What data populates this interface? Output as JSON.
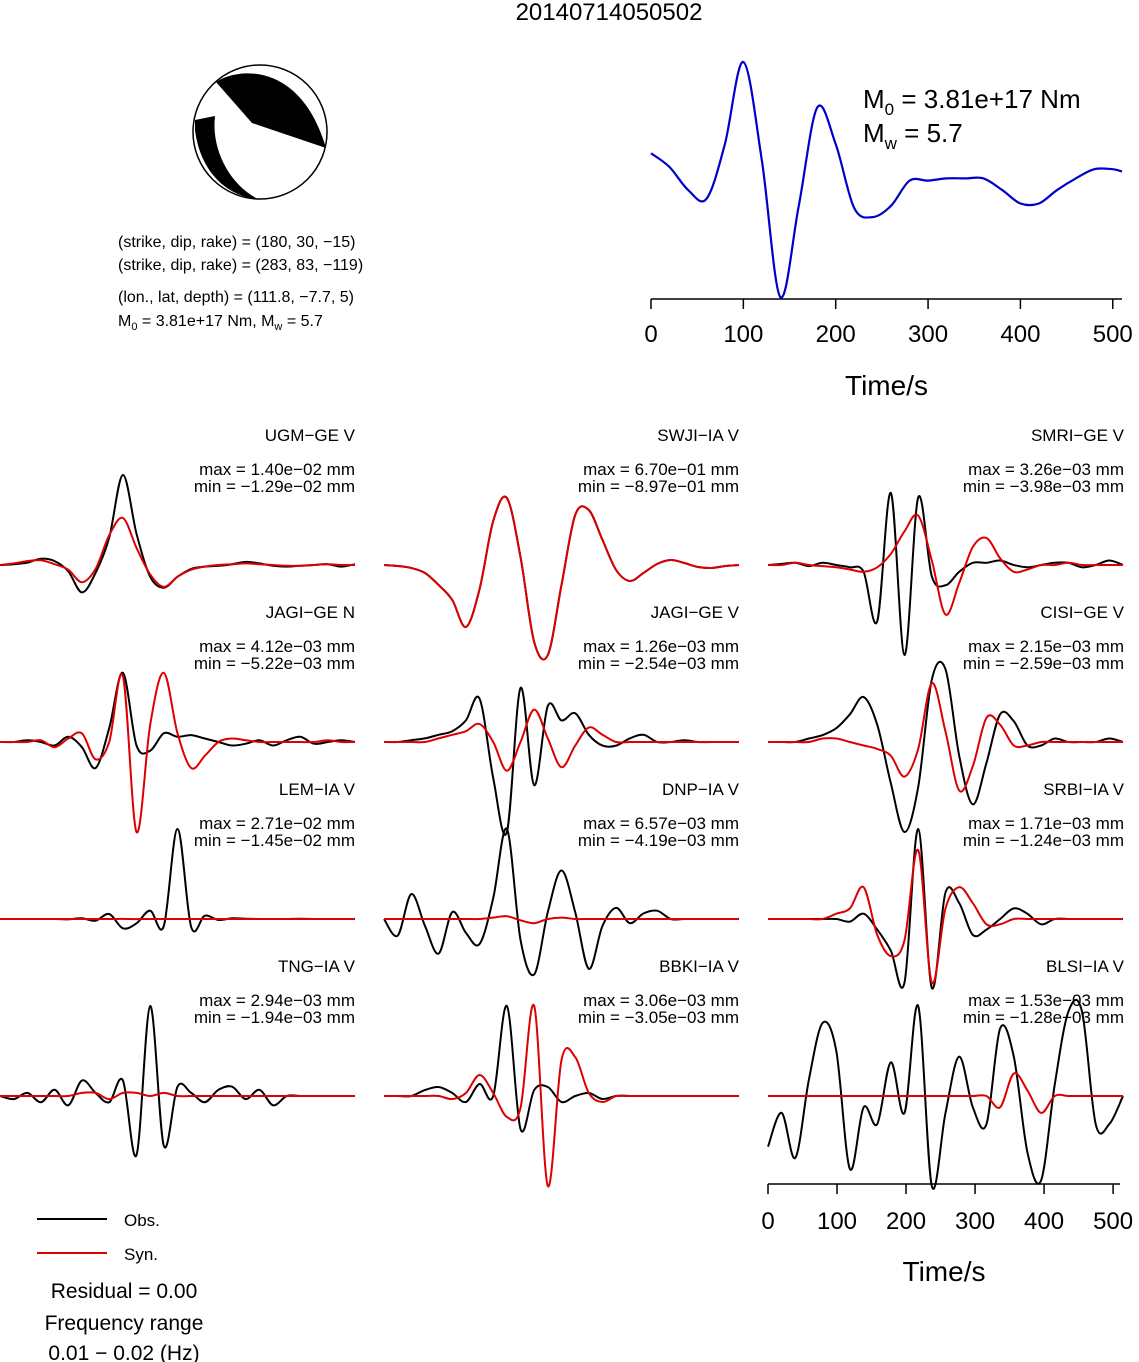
{
  "title": "20140714050502",
  "mechanism": {
    "lines": [
      "(strike, dip, rake) = (180, 30, −15)",
      "(strike, dip, rake) = (283, 83, −119)",
      "(lon., lat, depth) = (111.8, −7.7, 5)"
    ],
    "moment": {
      "m0_label": "M",
      "m0_sub": "0",
      "m0_value": " = 3.81e+17 Nm, M",
      "mw_sub": "w",
      "mw_value": " = 5.7"
    }
  },
  "stf": {
    "m0": {
      "label": "M",
      "sub": "0",
      "value": " = 3.81e+17 Nm"
    },
    "mw": {
      "label": "M",
      "sub": "w",
      "value": " = 5.7"
    }
  },
  "legend": {
    "obs": "Obs.",
    "syn": "Syn.",
    "residual": "Residual = 0.00",
    "freq_title": "Frequency range",
    "freq_range": "0.01 − 0.02 (Hz)"
  },
  "chart_data": {
    "type": "line",
    "colors": {
      "obs": "#000000",
      "syn": "#dd0000",
      "stf": "#0000cc"
    },
    "time_axis": {
      "label": "Time/s",
      "ticks": [
        0,
        100,
        200,
        300,
        400,
        500
      ],
      "xlim": [
        0,
        510
      ]
    },
    "source_time_function": {
      "t": [
        0,
        20,
        40,
        60,
        80,
        100,
        120,
        140,
        160,
        180,
        200,
        220,
        240,
        260,
        280,
        300,
        320,
        340,
        360,
        380,
        400,
        420,
        440,
        460,
        480,
        500,
        510
      ],
      "v": [
        0.58,
        0.52,
        0.42,
        0.38,
        0.62,
        0.98,
        0.55,
        -0.05,
        0.35,
        0.78,
        0.62,
        0.34,
        0.3,
        0.35,
        0.46,
        0.46,
        0.47,
        0.47,
        0.47,
        0.42,
        0.36,
        0.36,
        0.42,
        0.47,
        0.51,
        0.51,
        0.5
      ]
    },
    "stations": [
      {
        "name": "UGM−GE V",
        "max": "max = 1.40e−02 mm",
        "min": "min = −1.29e−02 mm",
        "obs": [
          0,
          0.1,
          0.3,
          0.8,
          0.5,
          -0.8,
          -3.5,
          -1,
          3.5,
          11.5,
          4,
          -1.5,
          -2.9,
          -1.5,
          -0.5,
          -0.2,
          -0.1,
          0.1,
          0.4,
          0.2,
          -0.1,
          -0.2,
          -0.1,
          0,
          0.1,
          -0.2,
          0.1
        ],
        "syn": [
          0,
          0.2,
          0.5,
          0.6,
          0.1,
          -0.6,
          -2.2,
          -0.5,
          3.8,
          6.0,
          2.2,
          -1.2,
          -2.8,
          -1.5,
          -0.6,
          -0.2,
          0,
          0.1,
          0.2,
          0.1,
          0,
          -0.1,
          -0.1,
          0,
          0.1,
          0,
          0
        ]
      },
      {
        "name": "SWJI−IA V",
        "max": "max = 6.70e−01 mm",
        "min": "min = −8.97e−01 mm",
        "obs": [
          0,
          -0.01,
          -0.03,
          -0.08,
          -0.2,
          -0.35,
          -0.62,
          -0.24,
          0.44,
          0.67,
          0.08,
          -0.77,
          -0.9,
          -0.2,
          0.5,
          0.55,
          0.25,
          -0.05,
          -0.16,
          -0.08,
          0.01,
          0.05,
          0.02,
          -0.02,
          -0.03,
          -0.01,
          0
        ],
        "syn": [
          0,
          -0.01,
          -0.03,
          -0.08,
          -0.2,
          -0.35,
          -0.62,
          -0.24,
          0.44,
          0.67,
          0.08,
          -0.77,
          -0.9,
          -0.2,
          0.5,
          0.55,
          0.25,
          -0.05,
          -0.16,
          -0.08,
          0.01,
          0.05,
          0.02,
          -0.02,
          -0.03,
          -0.01,
          0
        ]
      },
      {
        "name": "SMRI−GE V",
        "max": "max = 3.26e−03 mm",
        "min": "min = −3.98e−03 mm",
        "obs": [
          0,
          0.05,
          0.1,
          -0.05,
          0.1,
          0,
          -0.1,
          -0.3,
          -2.5,
          3.2,
          -4,
          3,
          -0.5,
          -0.9,
          -0.3,
          0.1,
          0.1,
          0.2,
          0,
          -0.1,
          0,
          0.1,
          0.1,
          -0.1,
          0,
          0.2,
          0
        ],
        "syn": [
          0,
          0,
          0.1,
          0,
          -0.05,
          -0.1,
          -0.2,
          -0.3,
          -0.1,
          0.5,
          1.5,
          2.2,
          0.2,
          -2.2,
          -0.8,
          0.8,
          1.2,
          0.3,
          -0.3,
          -0.2,
          0,
          0,
          0.1,
          0,
          0,
          0,
          0
        ]
      },
      {
        "name": "JAGI−GE N",
        "max": "max = 4.12e−03 mm",
        "min": "min = −5.22e−03 mm",
        "obs": [
          0,
          0,
          0.1,
          0,
          -0.2,
          0.3,
          -0.3,
          -1.5,
          0.8,
          4,
          -0.2,
          -0.5,
          0.5,
          0.3,
          0.4,
          0.2,
          0,
          -0.2,
          -0.1,
          0.1,
          -0.2,
          0.1,
          0.3,
          -0.1,
          0,
          0.1,
          0
        ],
        "syn": [
          0,
          0,
          0,
          0.1,
          -0.3,
          0.2,
          0.5,
          -1,
          0,
          3.8,
          -5.2,
          1,
          4,
          0.5,
          -1.5,
          -0.8,
          0,
          0.2,
          0.1,
          0,
          0,
          0,
          0,
          0,
          0.1,
          0,
          0
        ]
      },
      {
        "name": "JAGI−GE V",
        "max": "max = 1.26e−03 mm",
        "min": "min = −2.54e−03 mm",
        "obs": [
          0,
          0,
          0.05,
          0.1,
          0.2,
          0.3,
          0.6,
          1.2,
          -1,
          -2.5,
          1.5,
          -1.2,
          1,
          0.6,
          0.8,
          0.2,
          -0.1,
          -0.1,
          0.1,
          0.2,
          0,
          0,
          0.05,
          0,
          0,
          0,
          0
        ],
        "syn": [
          0,
          0,
          0,
          0,
          0.1,
          0.2,
          0.3,
          0.5,
          0,
          -0.8,
          0,
          0.9,
          0.1,
          -0.7,
          -0.1,
          0.4,
          0.2,
          0,
          0,
          0,
          0,
          0,
          0,
          0,
          0,
          0,
          0
        ]
      },
      {
        "name": "CISI−GE V",
        "max": "max = 2.15e−03 mm",
        "min": "min = −2.59e−03 mm",
        "obs": [
          0,
          0,
          0,
          0.1,
          0.2,
          0.4,
          0.8,
          1.3,
          0.5,
          -1.2,
          -2.6,
          -1.3,
          1.8,
          2.1,
          -0.4,
          -1.8,
          -0.6,
          0.8,
          0.6,
          -0.1,
          -0.1,
          0.1,
          0,
          0,
          0,
          0.1,
          0
        ],
        "syn": [
          0,
          0,
          0,
          0,
          0.1,
          0.1,
          0,
          -0.1,
          -0.2,
          -0.4,
          -1,
          -0.2,
          1.7,
          0.3,
          -1.4,
          -0.7,
          0.7,
          0.5,
          -0.1,
          -0.1,
          0,
          0,
          0,
          0,
          0,
          0,
          0
        ]
      },
      {
        "name": "LEM−IA V",
        "max": "max = 2.71e−02 mm",
        "min": "min = −1.45e−02 mm",
        "obs": [
          0,
          0,
          0,
          0,
          0,
          -0.1,
          0.2,
          -0.5,
          1.5,
          -2.8,
          -1.3,
          2.5,
          -2.1,
          27,
          -2.4,
          1,
          -0.3,
          0.2,
          0.1,
          0,
          0,
          0,
          0.1,
          0,
          0,
          0,
          0
        ],
        "syn": [
          0,
          0,
          0,
          0,
          0,
          0,
          0,
          0.01,
          -0.01,
          0.02,
          -0.02,
          0.01,
          0,
          0,
          0,
          0,
          0,
          0,
          0,
          0,
          0,
          0,
          0,
          0,
          0,
          0,
          0
        ]
      },
      {
        "name": "DNP−IA V",
        "max": "max = 6.57e−03 mm",
        "min": "min = −4.19e−03 mm",
        "obs": [
          0,
          -1.2,
          1.8,
          -0.5,
          -2.5,
          0.5,
          -1,
          -1.8,
          1.5,
          6.5,
          -1.5,
          -4,
          0.5,
          3.5,
          0.5,
          -3.6,
          -0.5,
          0.8,
          -0.3,
          0.4,
          0.6,
          0,
          0,
          0,
          0,
          0,
          0
        ],
        "syn": [
          0,
          0,
          0,
          0,
          0,
          0,
          0,
          0,
          0.1,
          0.2,
          -0.1,
          -0.3,
          0,
          0.1,
          0,
          0,
          0,
          0,
          0,
          0,
          0,
          0,
          0,
          0,
          0,
          0,
          0
        ]
      },
      {
        "name": "SRBI−IA V",
        "max": "max = 1.71e−03 mm",
        "min": "min = −1.24e−03 mm",
        "obs": [
          0,
          0,
          0,
          0,
          0,
          0,
          -0.05,
          0.1,
          -0.2,
          -0.6,
          -1.2,
          1.7,
          -1.3,
          0.5,
          0.3,
          -0.3,
          -0.2,
          0,
          0.2,
          0.1,
          -0.1,
          0,
          0,
          0,
          0,
          0,
          0
        ],
        "syn": [
          0,
          0,
          0,
          0,
          0,
          0.1,
          0.2,
          0.6,
          -0.3,
          -0.7,
          -0.4,
          1.3,
          -1.2,
          0.2,
          0.6,
          0.3,
          -0.1,
          -0.1,
          0,
          0,
          0,
          0,
          0,
          0,
          0,
          0,
          0
        ]
      },
      {
        "name": "TNG−IA V",
        "max": "max = 2.94e−03 mm",
        "min": "min = −1.94e−03 mm",
        "obs": [
          0,
          -0.1,
          0.1,
          -0.2,
          0.2,
          -0.3,
          0.5,
          0.1,
          -0.2,
          0.5,
          -1.9,
          2.9,
          -1.6,
          0.3,
          0.1,
          -0.2,
          0.2,
          0.3,
          -0.1,
          0.2,
          -0.3,
          0,
          0,
          0,
          0,
          0,
          0
        ],
        "syn": [
          0,
          0,
          0,
          0,
          0,
          0,
          0.1,
          0.1,
          -0.1,
          0.1,
          0.1,
          0,
          0.1,
          0,
          0,
          0,
          0,
          0,
          0,
          0,
          0,
          0,
          0,
          0,
          0,
          0,
          0
        ]
      },
      {
        "name": "BBKI−IA V",
        "max": "max = 3.06e−03 mm",
        "min": "min = −3.05e−03 mm",
        "obs": [
          0,
          0,
          0,
          0.2,
          0.3,
          0.1,
          -0.2,
          0.4,
          0,
          3,
          -1.1,
          0.2,
          0.3,
          -0.2,
          0,
          0.1,
          -0.1,
          0,
          0,
          0,
          0,
          0,
          0,
          0,
          0,
          0,
          0
        ],
        "syn": [
          0,
          0,
          0,
          0,
          0,
          -0.1,
          0.1,
          0.7,
          0.1,
          -0.7,
          -0.4,
          3.0,
          -3.0,
          1.2,
          1.3,
          0.1,
          -0.2,
          0,
          0,
          0,
          0,
          0,
          0,
          0,
          0,
          0,
          0
        ]
      },
      {
        "name": "BLSI−IA V",
        "max": "max = 1.53e−03 mm",
        "min": "min = −1.28e−03 mm",
        "obs": [
          -0.9,
          -0.3,
          -1.1,
          0.3,
          1.3,
          0.8,
          -1.3,
          -0.2,
          -0.5,
          0.6,
          -0.3,
          1.6,
          -1.6,
          -0.3,
          0.7,
          -0.2,
          -0.5,
          1.2,
          0.7,
          -1,
          -1.5,
          0.2,
          1.5,
          1.5,
          -0.5,
          -0.5,
          0
        ],
        "syn": [
          0,
          0,
          0,
          0,
          0,
          0,
          0,
          0,
          0,
          0,
          0,
          0,
          0,
          0,
          0,
          0,
          0,
          -0.2,
          0.4,
          0.1,
          -0.3,
          0,
          0,
          0,
          0,
          0,
          0
        ]
      }
    ]
  }
}
